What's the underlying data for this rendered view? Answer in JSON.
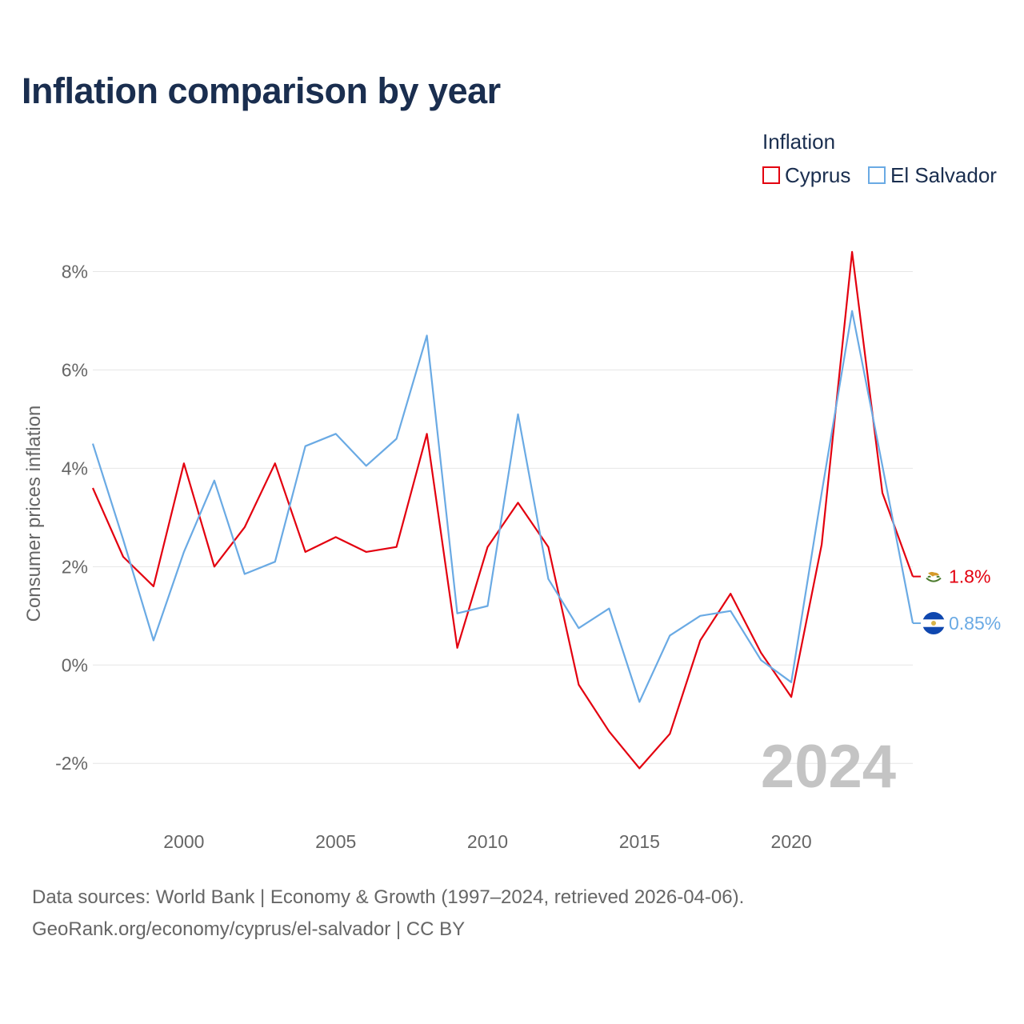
{
  "title": "Inflation comparison by year",
  "legend": {
    "title": "Inflation",
    "items": [
      {
        "label": "Cyprus",
        "color": "#e3000f"
      },
      {
        "label": "El Salvador",
        "color": "#6aaae4"
      }
    ]
  },
  "chart_data": {
    "type": "line",
    "title": "Inflation comparison by year",
    "xlabel": "",
    "ylabel": "Consumer prices inflation",
    "xlim": [
      1997,
      2024
    ],
    "ylim": [
      -3.2,
      9.0
    ],
    "x_ticks": [
      2000,
      2005,
      2010,
      2015,
      2020
    ],
    "x_tick_labels": [
      "2000",
      "2005",
      "2010",
      "2015",
      "2020"
    ],
    "y_ticks": [
      -2,
      0,
      2,
      4,
      6,
      8
    ],
    "y_tick_labels": [
      "-2%",
      "0%",
      "2%",
      "4%",
      "6%",
      "8%"
    ],
    "grid": true,
    "legend_position": "top-right",
    "year_watermark": "2024",
    "x": [
      1997,
      1998,
      1999,
      2000,
      2001,
      2002,
      2003,
      2004,
      2005,
      2006,
      2007,
      2008,
      2009,
      2010,
      2011,
      2012,
      2013,
      2014,
      2015,
      2016,
      2017,
      2018,
      2019,
      2020,
      2021,
      2022,
      2023,
      2024
    ],
    "series": [
      {
        "name": "Cyprus",
        "color": "#e3000f",
        "end_label": "1.8%",
        "flag": "cyprus-flag",
        "values": [
          3.6,
          2.2,
          1.6,
          4.1,
          2.0,
          2.8,
          4.1,
          2.3,
          2.6,
          2.3,
          2.4,
          4.7,
          0.35,
          2.4,
          3.3,
          2.4,
          -0.4,
          -1.35,
          -2.1,
          -1.4,
          0.5,
          1.45,
          0.25,
          -0.65,
          2.45,
          8.4,
          3.5,
          1.8
        ]
      },
      {
        "name": "El Salvador",
        "color": "#6aaae4",
        "end_label": "0.85%",
        "flag": "el-salvador-flag",
        "values": [
          4.5,
          2.55,
          0.5,
          2.3,
          3.75,
          1.85,
          2.1,
          4.45,
          4.7,
          4.05,
          4.6,
          6.7,
          1.05,
          1.2,
          5.1,
          1.75,
          0.75,
          1.15,
          -0.75,
          0.6,
          1.0,
          1.1,
          0.1,
          -0.35,
          3.5,
          7.2,
          4.05,
          0.85
        ]
      }
    ]
  },
  "footer": {
    "line1": "Data sources: World Bank | Economy & Growth (1997–2024, retrieved 2026-04-06).",
    "line2": "GeoRank.org/economy/cyprus/el-salvador | CC BY"
  }
}
